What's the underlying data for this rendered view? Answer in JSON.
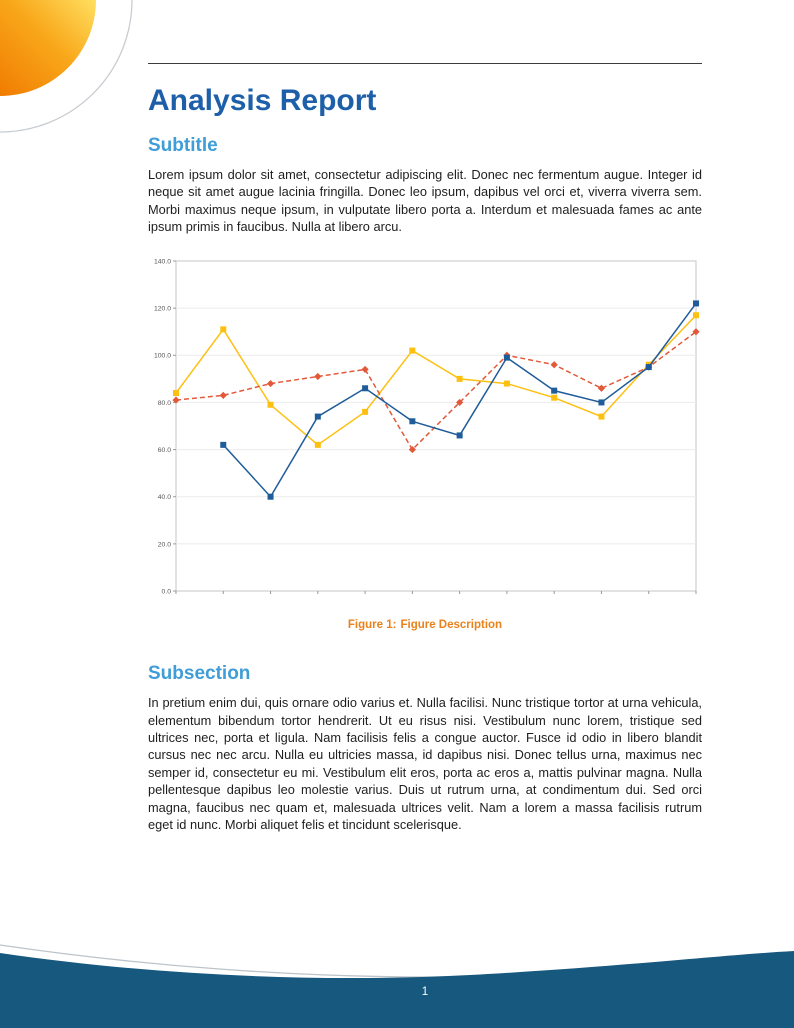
{
  "title": "Analysis Report",
  "sections": [
    {
      "heading": "Subtitle",
      "body": "Lorem ipsum dolor sit amet, consectetur adipiscing elit. Donec nec fermentum augue. Integer id neque sit amet augue lacinia fringilla. Donec leo ipsum, dapibus vel orci et, viverra viverra sem. Morbi maximus neque ipsum, in vulputate libero porta a. Interdum et malesuada fames ac ante ipsum primis in faucibus. Nulla at libero arcu."
    },
    {
      "heading": "Subsection",
      "body": "In pretium enim dui, quis ornare odio varius et. Nulla facilisi. Nunc tristique tortor at urna vehicula, elementum bibendum tortor hendrerit. Ut eu risus nisi. Vestibulum nunc lorem, tristique sed ultrices nec, porta et ligula. Nam facilisis felis a congue auctor. Fusce id odio in libero blandit cursus nec nec arcu. Nulla eu ultricies massa, id dapibus nisi. Donec tellus urna, maximus nec semper id, consectetur eu mi. Vestibulum elit eros, porta ac eros a, mattis pulvinar magna. Nulla pellentesque dapibus leo molestie varius. Duis ut rutrum urna, at condimentum dui. Sed orci magna, faucibus nec quam et, malesuada ultrices velit. Nam a lorem a massa facilisis rutrum eget id nunc. Morbi aliquet felis et tincidunt scelerisque."
    }
  ],
  "figure": {
    "label": "Figure 1:",
    "caption": "Figure Description"
  },
  "footer": {
    "page_number": "1"
  },
  "theme": {
    "title_color": "#1d5fa8",
    "heading_color": "#3f9dd8",
    "caption_color": "#e8821c",
    "footer_color": "#16587e",
    "swoosh_orange": "#f07c00",
    "swoosh_yellow": "#ffdf60",
    "body_text_color": "#1e1e1e"
  },
  "chart_data": {
    "type": "line",
    "title": "",
    "xlabel": "",
    "ylabel": "",
    "x": [
      1,
      2,
      3,
      4,
      5,
      6,
      7,
      8,
      9,
      10,
      11,
      12
    ],
    "series": [
      {
        "name": "series-yellow",
        "color": "#fdc011",
        "style": "solid",
        "marker": "square",
        "values": [
          84,
          111,
          79,
          62,
          76,
          102,
          90,
          88,
          82,
          74,
          96,
          117
        ]
      },
      {
        "name": "series-red-dashed",
        "color": "#e2593a",
        "style": "dashed",
        "marker": "diamond",
        "values": [
          81,
          83,
          88,
          91,
          94,
          60,
          80,
          100,
          96,
          86,
          95,
          110
        ]
      },
      {
        "name": "series-blue",
        "color": "#1f5c99",
        "style": "solid",
        "marker": "square",
        "values": [
          null,
          62,
          40,
          74,
          86,
          72,
          66,
          99,
          85,
          80,
          95,
          122
        ]
      }
    ],
    "ylim": [
      0,
      140
    ],
    "ytick_step": 20,
    "ytick_labels": [
      "0.0",
      "20.0",
      "40.0",
      "60.0",
      "80.0",
      "100.0",
      "120.0",
      "140.0"
    ],
    "grid": "horizontal",
    "legend": "none",
    "plot_border_color": "#c4c4c4",
    "grid_color": "#ebebeb"
  }
}
